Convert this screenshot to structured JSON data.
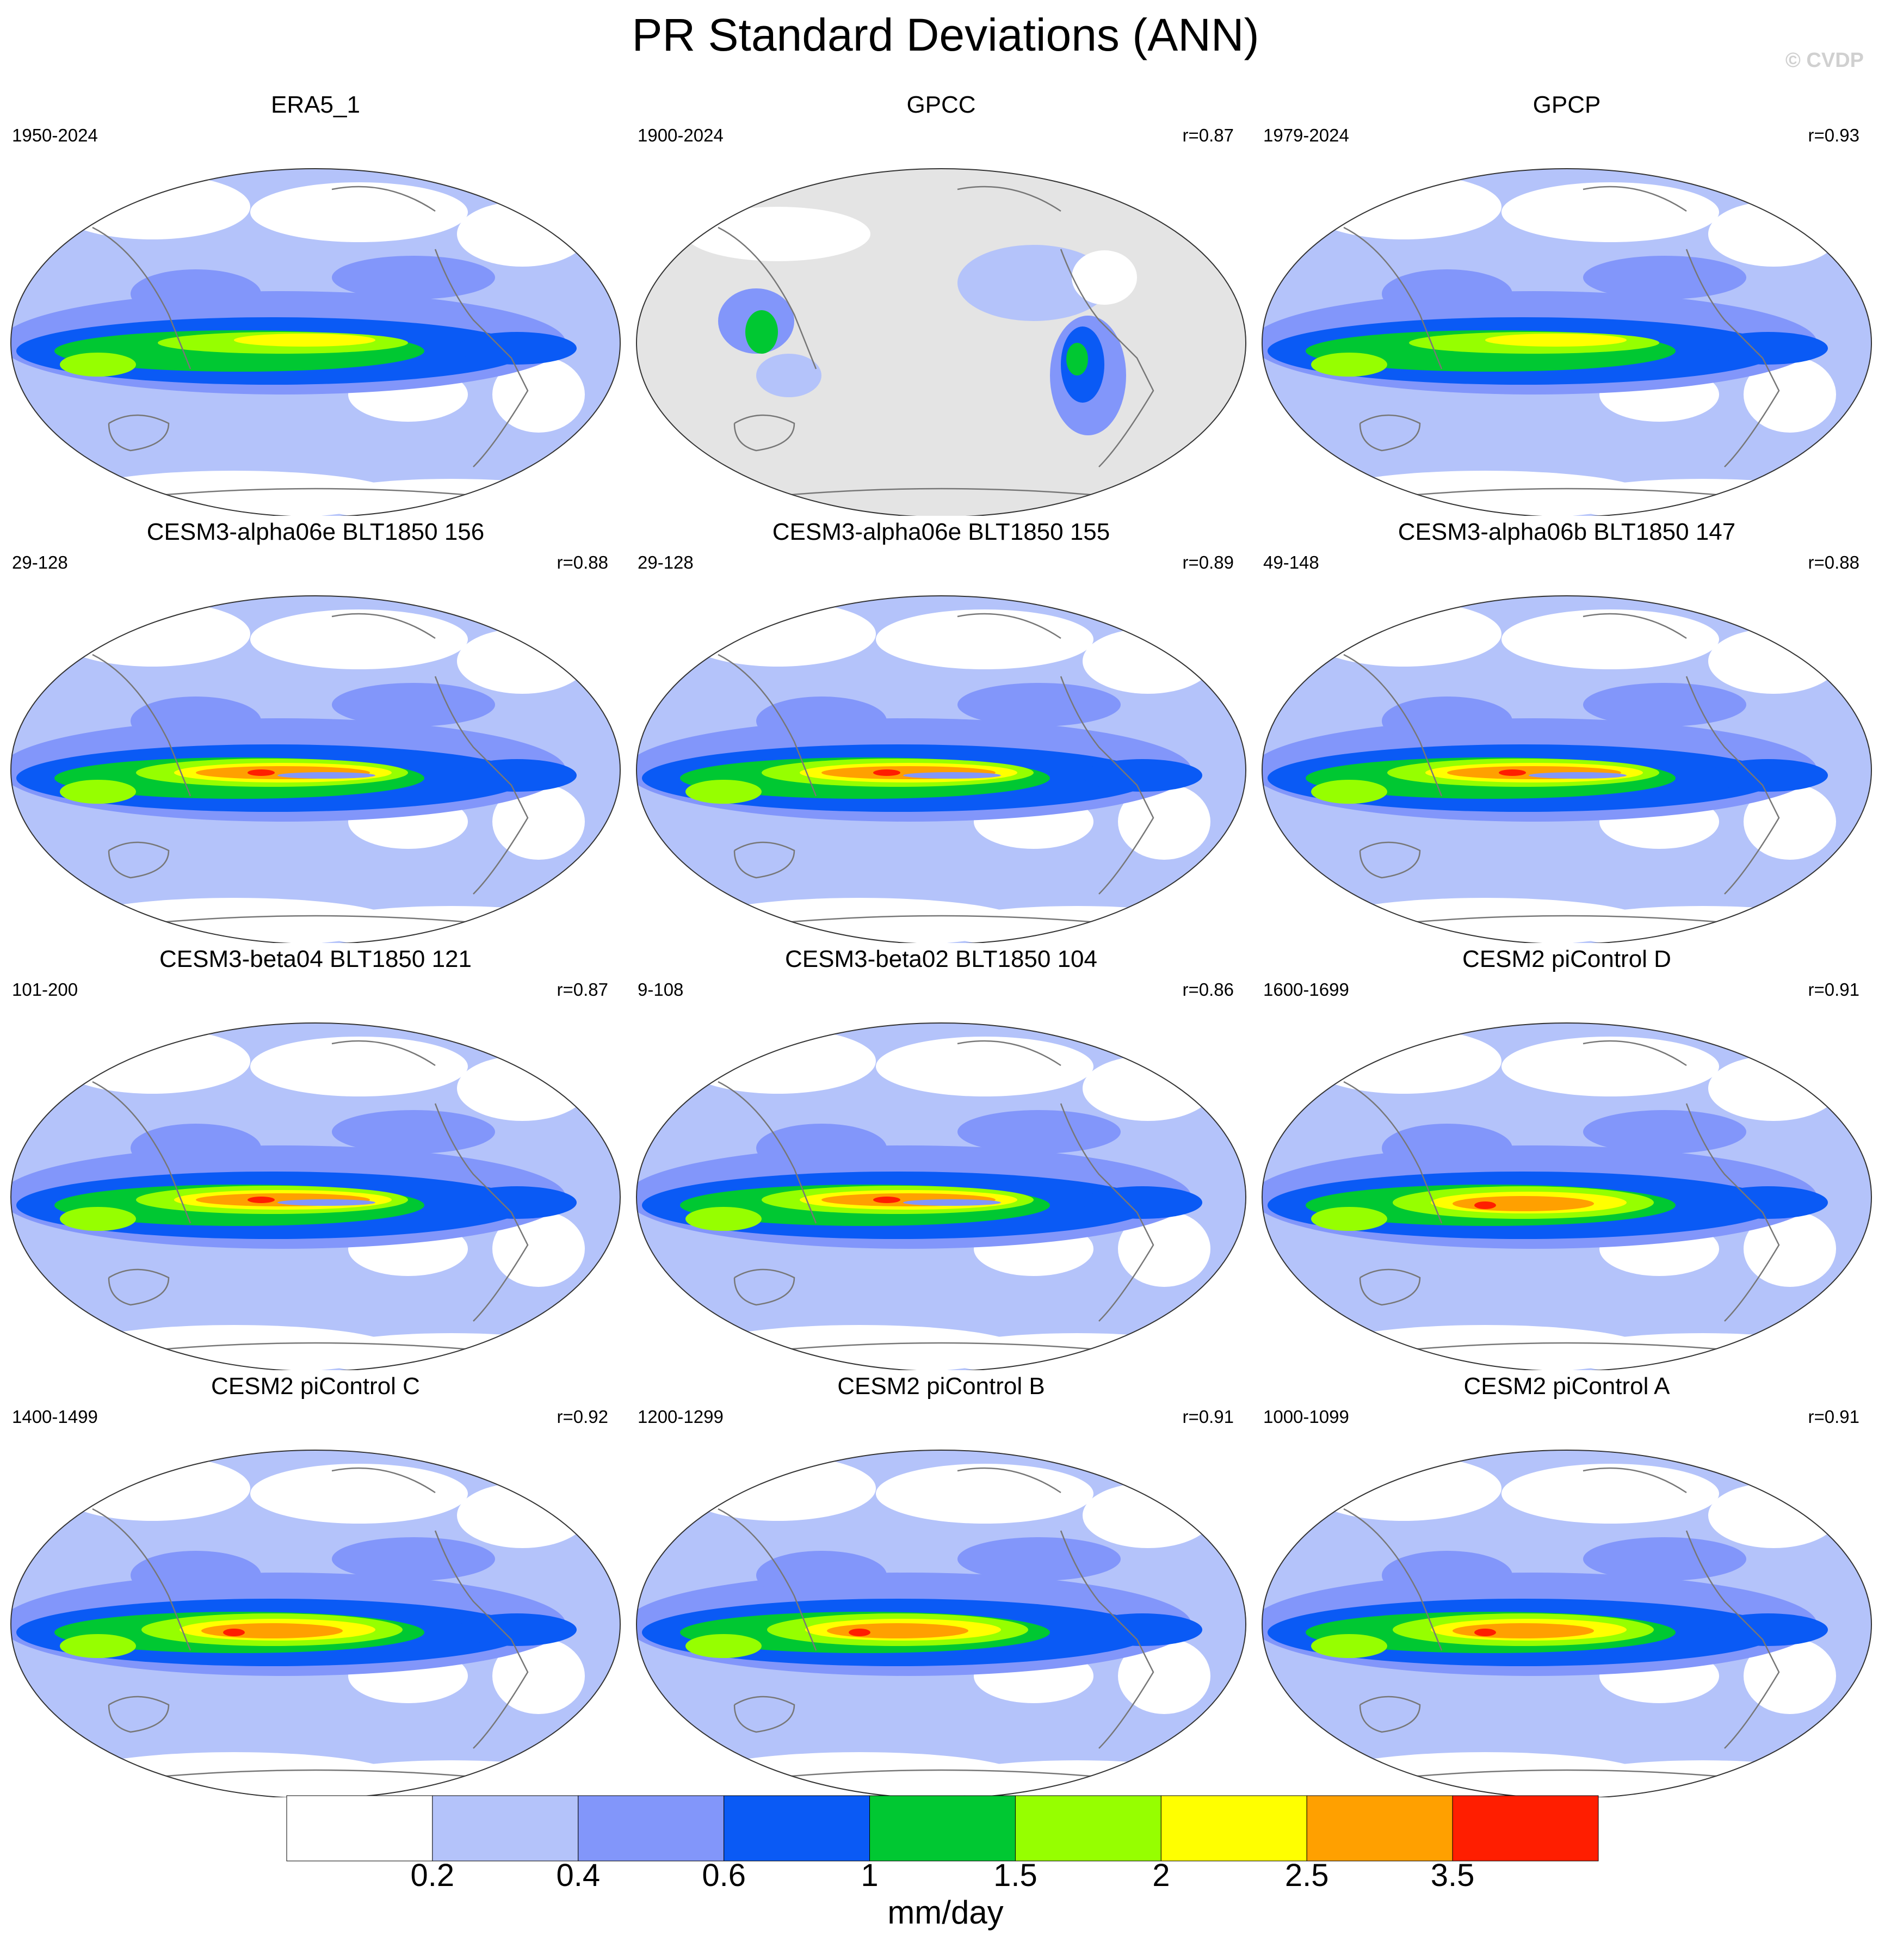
{
  "title": "PR Standard Deviations (ANN)",
  "watermark": "© CVDP",
  "panels": [
    {
      "title": "ERA5_1",
      "years": "1950-2024",
      "r": "",
      "style": "era5"
    },
    {
      "title": "GPCC",
      "years": "1900-2024",
      "r": "r=0.87",
      "style": "gpcc"
    },
    {
      "title": "GPCP",
      "years": "1979-2024",
      "r": "r=0.93",
      "style": "gpcp"
    },
    {
      "title": "CESM3-alpha06e BLT1850 156",
      "years": "29-128",
      "r": "r=0.88",
      "style": "cesm3"
    },
    {
      "title": "CESM3-alpha06e BLT1850 155",
      "years": "29-128",
      "r": "r=0.89",
      "style": "cesm3"
    },
    {
      "title": "CESM3-alpha06b BLT1850 147",
      "years": "49-148",
      "r": "r=0.88",
      "style": "cesm3"
    },
    {
      "title": "CESM3-beta04 BLT1850 121",
      "years": "101-200",
      "r": "r=0.87",
      "style": "cesm3b"
    },
    {
      "title": "CESM3-beta02 BLT1850 104",
      "years": "9-108",
      "r": "r=0.86",
      "style": "cesm3b"
    },
    {
      "title": "CESM2 piControl D",
      "years": "1600-1699",
      "r": "r=0.91",
      "style": "cesm2"
    },
    {
      "title": "CESM2 piControl C",
      "years": "1400-1499",
      "r": "r=0.92",
      "style": "cesm2"
    },
    {
      "title": "CESM2 piControl B",
      "years": "1200-1299",
      "r": "r=0.91",
      "style": "cesm2"
    },
    {
      "title": "CESM2 piControl A",
      "years": "1000-1099",
      "r": "r=0.91",
      "style": "cesm2"
    }
  ],
  "colorbar": {
    "unit": "mm/day",
    "labels": [
      "0.2",
      "0.4",
      "0.6",
      "1",
      "1.5",
      "2",
      "2.5",
      "3.5"
    ],
    "colors": [
      "#ffffff",
      "#b4c3fa",
      "#8296fa",
      "#0a5af5",
      "#00c832",
      "#96ff00",
      "#ffff00",
      "#ffa000",
      "#ff1e00"
    ]
  },
  "colors": {
    "land_mask_gray": "#e4e4e4",
    "coastline": "#777777"
  }
}
